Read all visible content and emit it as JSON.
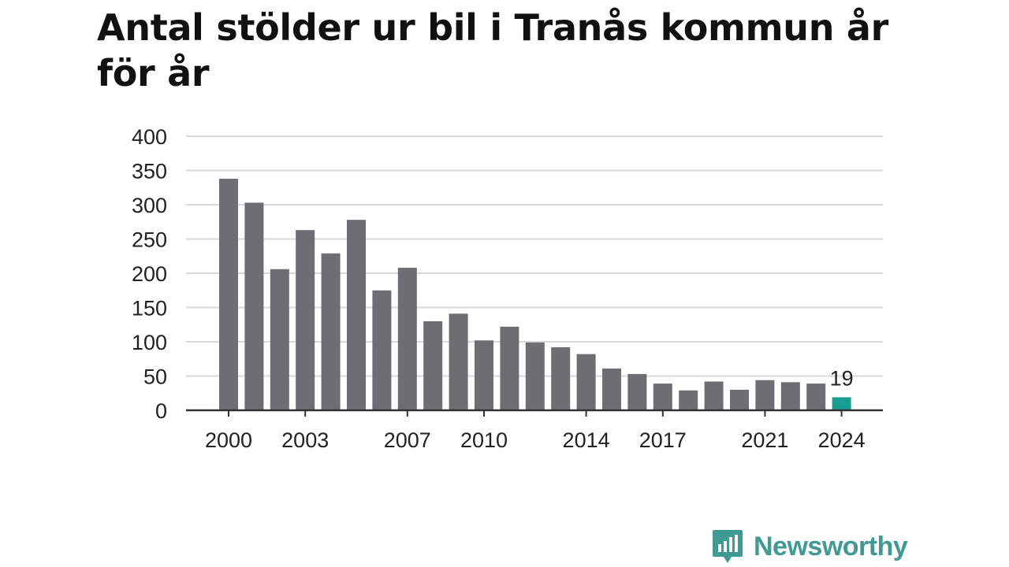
{
  "chart_data": {
    "type": "bar",
    "title": "Antal stölder ur bil i Tranås kommun år för år",
    "categories": [
      "2000",
      "2001",
      "2002",
      "2003",
      "2004",
      "2005",
      "2006",
      "2007",
      "2008",
      "2009",
      "2010",
      "2011",
      "2012",
      "2013",
      "2014",
      "2015",
      "2016",
      "2017",
      "2018",
      "2019",
      "2020",
      "2021",
      "2022",
      "2023",
      "2024"
    ],
    "values": [
      338,
      303,
      206,
      263,
      229,
      278,
      175,
      208,
      130,
      141,
      102,
      122,
      99,
      92,
      82,
      61,
      53,
      39,
      29,
      42,
      30,
      44,
      41,
      39,
      19
    ],
    "x_tick_labels": [
      "2000",
      "2003",
      "2007",
      "2010",
      "2014",
      "2017",
      "2021",
      "2024"
    ],
    "y_ticks": [
      0,
      50,
      100,
      150,
      200,
      250,
      300,
      350,
      400
    ],
    "ylim": [
      0,
      400
    ],
    "highlight": {
      "category": "2024",
      "label": "19"
    },
    "colors": {
      "bar": "#6e6d72",
      "highlight": "#1a9d93",
      "grid": "#d9d9d9",
      "axis": "#333333",
      "text": "#222222"
    },
    "grid": true,
    "xlabel": "",
    "ylabel": ""
  },
  "brand": {
    "name": "Newsworthy",
    "icon": "newsworthy-logo-icon",
    "color": "#3f9a94"
  }
}
